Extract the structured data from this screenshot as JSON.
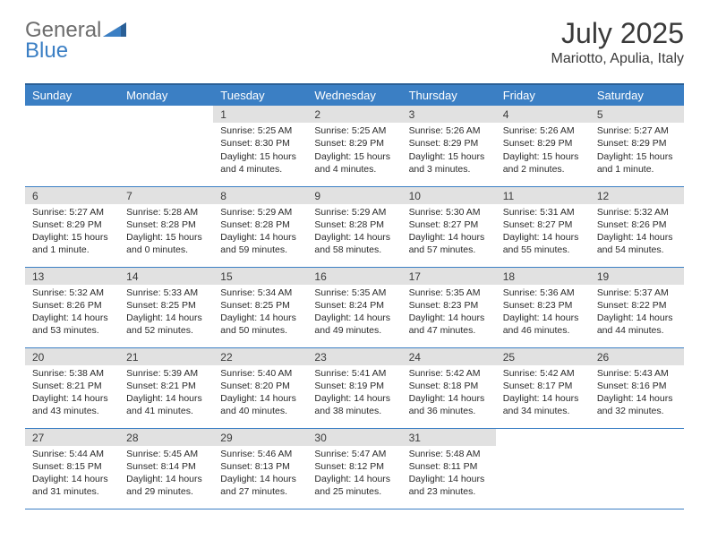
{
  "brand": {
    "part1": "General",
    "part2": "Blue"
  },
  "title": "July 2025",
  "location": "Mariotto, Apulia, Italy",
  "colors": {
    "header_bg": "#3b7fc4",
    "header_border": "#2a5f96",
    "daynum_bg": "#e1e1e1",
    "text": "#3a3a3a",
    "logo_gray": "#6d6d6d",
    "logo_blue": "#3b7fc4"
  },
  "weekdays": [
    "Sunday",
    "Monday",
    "Tuesday",
    "Wednesday",
    "Thursday",
    "Friday",
    "Saturday"
  ],
  "weeks": [
    [
      null,
      null,
      {
        "n": "1",
        "sunrise": "5:25 AM",
        "sunset": "8:30 PM",
        "daylight": "15 hours and 4 minutes."
      },
      {
        "n": "2",
        "sunrise": "5:25 AM",
        "sunset": "8:29 PM",
        "daylight": "15 hours and 4 minutes."
      },
      {
        "n": "3",
        "sunrise": "5:26 AM",
        "sunset": "8:29 PM",
        "daylight": "15 hours and 3 minutes."
      },
      {
        "n": "4",
        "sunrise": "5:26 AM",
        "sunset": "8:29 PM",
        "daylight": "15 hours and 2 minutes."
      },
      {
        "n": "5",
        "sunrise": "5:27 AM",
        "sunset": "8:29 PM",
        "daylight": "15 hours and 1 minute."
      }
    ],
    [
      {
        "n": "6",
        "sunrise": "5:27 AM",
        "sunset": "8:29 PM",
        "daylight": "15 hours and 1 minute."
      },
      {
        "n": "7",
        "sunrise": "5:28 AM",
        "sunset": "8:28 PM",
        "daylight": "15 hours and 0 minutes."
      },
      {
        "n": "8",
        "sunrise": "5:29 AM",
        "sunset": "8:28 PM",
        "daylight": "14 hours and 59 minutes."
      },
      {
        "n": "9",
        "sunrise": "5:29 AM",
        "sunset": "8:28 PM",
        "daylight": "14 hours and 58 minutes."
      },
      {
        "n": "10",
        "sunrise": "5:30 AM",
        "sunset": "8:27 PM",
        "daylight": "14 hours and 57 minutes."
      },
      {
        "n": "11",
        "sunrise": "5:31 AM",
        "sunset": "8:27 PM",
        "daylight": "14 hours and 55 minutes."
      },
      {
        "n": "12",
        "sunrise": "5:32 AM",
        "sunset": "8:26 PM",
        "daylight": "14 hours and 54 minutes."
      }
    ],
    [
      {
        "n": "13",
        "sunrise": "5:32 AM",
        "sunset": "8:26 PM",
        "daylight": "14 hours and 53 minutes."
      },
      {
        "n": "14",
        "sunrise": "5:33 AM",
        "sunset": "8:25 PM",
        "daylight": "14 hours and 52 minutes."
      },
      {
        "n": "15",
        "sunrise": "5:34 AM",
        "sunset": "8:25 PM",
        "daylight": "14 hours and 50 minutes."
      },
      {
        "n": "16",
        "sunrise": "5:35 AM",
        "sunset": "8:24 PM",
        "daylight": "14 hours and 49 minutes."
      },
      {
        "n": "17",
        "sunrise": "5:35 AM",
        "sunset": "8:23 PM",
        "daylight": "14 hours and 47 minutes."
      },
      {
        "n": "18",
        "sunrise": "5:36 AM",
        "sunset": "8:23 PM",
        "daylight": "14 hours and 46 minutes."
      },
      {
        "n": "19",
        "sunrise": "5:37 AM",
        "sunset": "8:22 PM",
        "daylight": "14 hours and 44 minutes."
      }
    ],
    [
      {
        "n": "20",
        "sunrise": "5:38 AM",
        "sunset": "8:21 PM",
        "daylight": "14 hours and 43 minutes."
      },
      {
        "n": "21",
        "sunrise": "5:39 AM",
        "sunset": "8:21 PM",
        "daylight": "14 hours and 41 minutes."
      },
      {
        "n": "22",
        "sunrise": "5:40 AM",
        "sunset": "8:20 PM",
        "daylight": "14 hours and 40 minutes."
      },
      {
        "n": "23",
        "sunrise": "5:41 AM",
        "sunset": "8:19 PM",
        "daylight": "14 hours and 38 minutes."
      },
      {
        "n": "24",
        "sunrise": "5:42 AM",
        "sunset": "8:18 PM",
        "daylight": "14 hours and 36 minutes."
      },
      {
        "n": "25",
        "sunrise": "5:42 AM",
        "sunset": "8:17 PM",
        "daylight": "14 hours and 34 minutes."
      },
      {
        "n": "26",
        "sunrise": "5:43 AM",
        "sunset": "8:16 PM",
        "daylight": "14 hours and 32 minutes."
      }
    ],
    [
      {
        "n": "27",
        "sunrise": "5:44 AM",
        "sunset": "8:15 PM",
        "daylight": "14 hours and 31 minutes."
      },
      {
        "n": "28",
        "sunrise": "5:45 AM",
        "sunset": "8:14 PM",
        "daylight": "14 hours and 29 minutes."
      },
      {
        "n": "29",
        "sunrise": "5:46 AM",
        "sunset": "8:13 PM",
        "daylight": "14 hours and 27 minutes."
      },
      {
        "n": "30",
        "sunrise": "5:47 AM",
        "sunset": "8:12 PM",
        "daylight": "14 hours and 25 minutes."
      },
      {
        "n": "31",
        "sunrise": "5:48 AM",
        "sunset": "8:11 PM",
        "daylight": "14 hours and 23 minutes."
      },
      null,
      null
    ]
  ],
  "labels": {
    "sunrise": "Sunrise:",
    "sunset": "Sunset:",
    "daylight": "Daylight:"
  }
}
